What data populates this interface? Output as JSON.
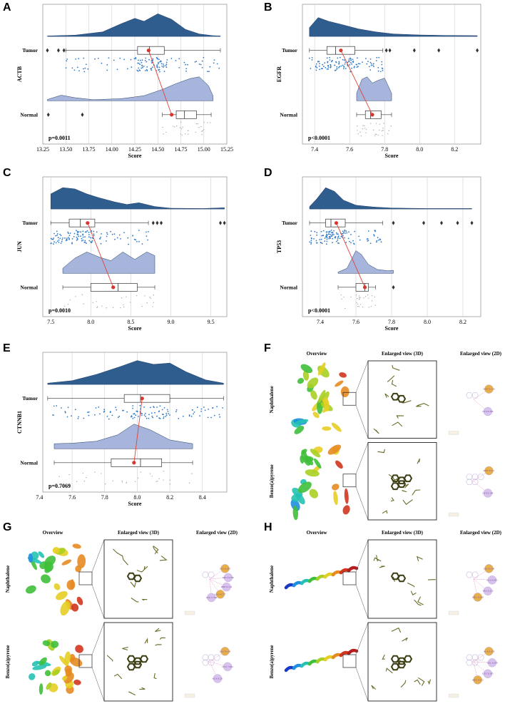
{
  "panel_labels": [
    "A",
    "B",
    "C",
    "D",
    "E",
    "F",
    "G",
    "H"
  ],
  "colors": {
    "tumor_fill": "#2e5d8e",
    "normal_fill": "#a7b4dc",
    "tumor_point": "#2f79c6",
    "normal_point": "#9aa3b0",
    "median_line": "#e0423a",
    "grid": "#cfcfcf"
  },
  "chart_data": [
    {
      "panel": "A",
      "type": "raincloud-boxplot",
      "gene": "ACTB",
      "xlabel": "Score",
      "categories": [
        "Tumor",
        "Normal"
      ],
      "xlim": [
        13.25,
        15.25
      ],
      "xticks": [
        13.25,
        13.5,
        13.75,
        14.0,
        14.25,
        14.5,
        14.75,
        15.0,
        15.25
      ],
      "xtick_labels": [
        "13.25",
        "13.50",
        "13.75",
        "14.00",
        "14.25",
        "14.50",
        "14.75",
        "15.00",
        "15.25"
      ],
      "p_value": "p=0.0011",
      "tumor": {
        "min": 13.5,
        "q1": 14.28,
        "median": 14.41,
        "q3": 14.57,
        "max": 15.18,
        "mean": 14.4,
        "outliers": [
          13.3,
          13.42,
          13.48
        ]
      },
      "normal": {
        "min": 14.55,
        "q1": 14.7,
        "median": 14.79,
        "q3": 14.92,
        "max": 15.08,
        "mean": 14.65,
        "outliers": [
          13.31,
          13.68
        ]
      },
      "tumor_density": [
        [
          13.3,
          0.02
        ],
        [
          13.6,
          0.05
        ],
        [
          13.9,
          0.18
        ],
        [
          14.1,
          0.5
        ],
        [
          14.25,
          0.72
        ],
        [
          14.35,
          0.6
        ],
        [
          14.5,
          0.9
        ],
        [
          14.65,
          0.68
        ],
        [
          14.8,
          0.28
        ],
        [
          14.95,
          0.1
        ],
        [
          15.1,
          0.03
        ],
        [
          15.18,
          0.02
        ]
      ],
      "normal_density": [
        [
          13.3,
          0.05
        ],
        [
          13.45,
          0.22
        ],
        [
          13.6,
          0.12
        ],
        [
          13.8,
          0.04
        ],
        [
          14.1,
          0.08
        ],
        [
          14.35,
          0.2
        ],
        [
          14.55,
          0.45
        ],
        [
          14.7,
          0.68
        ],
        [
          14.85,
          0.88
        ],
        [
          14.95,
          0.95
        ],
        [
          15.05,
          0.6
        ],
        [
          15.1,
          0.2
        ]
      ]
    },
    {
      "panel": "B",
      "type": "raincloud-boxplot",
      "gene": "EGFR",
      "xlabel": "Score",
      "categories": [
        "Tumor",
        "Normal"
      ],
      "xlim": [
        7.33,
        8.35
      ],
      "xticks": [
        7.4,
        7.6,
        7.8,
        8.0,
        8.2
      ],
      "xtick_labels": [
        "7.4",
        "7.6",
        "7.8",
        "8.0",
        "8.2"
      ],
      "p_value": "p<0.0001",
      "tumor": {
        "min": 7.37,
        "q1": 7.47,
        "median": 7.52,
        "q3": 7.63,
        "max": 7.79,
        "mean": 7.55,
        "outliers": [
          7.81,
          7.83,
          7.97,
          8.11,
          8.33
        ]
      },
      "normal": {
        "min": 7.64,
        "q1": 7.69,
        "median": 7.72,
        "q3": 7.78,
        "max": 7.84,
        "mean": 7.73,
        "outliers": []
      },
      "tumor_density": [
        [
          7.37,
          0.35
        ],
        [
          7.42,
          0.75
        ],
        [
          7.48,
          0.6
        ],
        [
          7.55,
          0.48
        ],
        [
          7.65,
          0.3
        ],
        [
          7.75,
          0.18
        ],
        [
          7.85,
          0.1
        ],
        [
          8.0,
          0.06
        ],
        [
          8.15,
          0.04
        ],
        [
          8.33,
          0.03
        ]
      ],
      "normal_density": [
        [
          7.64,
          0.3
        ],
        [
          7.67,
          0.85
        ],
        [
          7.7,
          0.95
        ],
        [
          7.73,
          0.7
        ],
        [
          7.76,
          0.8
        ],
        [
          7.8,
          0.9
        ],
        [
          7.84,
          0.3
        ]
      ]
    },
    {
      "panel": "C",
      "type": "raincloud-boxplot",
      "gene": "JUN",
      "xlabel": "Score",
      "categories": [
        "Tumor",
        "Normal"
      ],
      "xlim": [
        7.4,
        9.7
      ],
      "xticks": [
        7.5,
        8.0,
        8.5,
        9.0,
        9.5
      ],
      "xtick_labels": [
        "7.5",
        "8.0",
        "8.5",
        "9.0",
        "9.5"
      ],
      "p_value": "p=0.0010",
      "tumor": {
        "min": 7.5,
        "q1": 7.73,
        "median": 7.87,
        "q3": 8.05,
        "max": 8.72,
        "mean": 7.96,
        "outliers": [
          8.78,
          8.83,
          8.88,
          9.62,
          9.67
        ]
      },
      "normal": {
        "min": 7.65,
        "q1": 8.0,
        "median": 8.34,
        "q3": 8.58,
        "max": 8.8,
        "mean": 8.28,
        "outliers": []
      },
      "tumor_density": [
        [
          7.5,
          0.6
        ],
        [
          7.65,
          0.85
        ],
        [
          7.8,
          0.8
        ],
        [
          7.95,
          0.6
        ],
        [
          8.1,
          0.45
        ],
        [
          8.3,
          0.28
        ],
        [
          8.45,
          0.18
        ],
        [
          8.6,
          0.25
        ],
        [
          8.8,
          0.1
        ],
        [
          9.0,
          0.03
        ],
        [
          9.4,
          0.02
        ],
        [
          9.67,
          0.05
        ]
      ],
      "normal_density": [
        [
          7.65,
          0.2
        ],
        [
          7.8,
          0.6
        ],
        [
          7.95,
          0.85
        ],
        [
          8.1,
          0.65
        ],
        [
          8.25,
          0.5
        ],
        [
          8.4,
          0.85
        ],
        [
          8.55,
          0.55
        ],
        [
          8.7,
          0.85
        ],
        [
          8.8,
          0.7
        ]
      ]
    },
    {
      "panel": "D",
      "type": "raincloud-boxplot",
      "gene": "TP53",
      "xlabel": "Score",
      "categories": [
        "Tumor",
        "Normal"
      ],
      "xlim": [
        7.3,
        8.3
      ],
      "xticks": [
        7.4,
        7.6,
        7.8,
        8.0,
        8.2
      ],
      "xtick_labels": [
        "7.4",
        "7.6",
        "7.8",
        "8.0",
        "8.2"
      ],
      "p_value": "p<0.0001",
      "tumor": {
        "min": 7.34,
        "q1": 7.43,
        "median": 7.46,
        "q3": 7.54,
        "max": 7.75,
        "mean": 7.49,
        "outliers": [
          7.81,
          7.98,
          8.08,
          8.17,
          8.25
        ]
      },
      "normal": {
        "min": 7.5,
        "q1": 7.6,
        "median": 7.65,
        "q3": 7.67,
        "max": 7.71,
        "mean": 7.65,
        "outliers": [
          7.81
        ]
      },
      "tumor_density": [
        [
          7.34,
          0.1
        ],
        [
          7.38,
          0.4
        ],
        [
          7.43,
          0.85
        ],
        [
          7.48,
          0.7
        ],
        [
          7.53,
          0.35
        ],
        [
          7.6,
          0.15
        ],
        [
          7.7,
          0.08
        ],
        [
          7.8,
          0.04
        ],
        [
          8.0,
          0.02
        ],
        [
          8.25,
          0.02
        ]
      ],
      "normal_density": [
        [
          7.5,
          0.05
        ],
        [
          7.55,
          0.2
        ],
        [
          7.6,
          0.9
        ],
        [
          7.63,
          0.75
        ],
        [
          7.67,
          0.35
        ],
        [
          7.72,
          0.15
        ],
        [
          7.78,
          0.1
        ],
        [
          7.81,
          0.12
        ]
      ]
    },
    {
      "panel": "E",
      "type": "raincloud-boxplot",
      "gene": "CTNNB1",
      "xlabel": "Score",
      "categories": [
        "Tumor",
        "Normal"
      ],
      "xlim": [
        7.42,
        8.55
      ],
      "xticks": [
        7.4,
        7.6,
        7.8,
        8.0,
        8.2,
        8.4
      ],
      "xtick_labels": [
        "7.4",
        "7.6",
        "7.8",
        "8.0",
        "8.2",
        "8.4"
      ],
      "p_value": "p=0.7069",
      "tumor": {
        "min": 7.45,
        "q1": 7.92,
        "median": 8.02,
        "q3": 8.2,
        "max": 8.53,
        "mean": 8.03,
        "outliers": []
      },
      "normal": {
        "min": 7.49,
        "q1": 7.84,
        "median": 8.02,
        "q3": 8.15,
        "max": 8.34,
        "mean": 7.98,
        "outliers": []
      },
      "tumor_density": [
        [
          7.45,
          0.05
        ],
        [
          7.6,
          0.15
        ],
        [
          7.75,
          0.4
        ],
        [
          7.9,
          0.72
        ],
        [
          8.0,
          0.95
        ],
        [
          8.1,
          0.8
        ],
        [
          8.2,
          0.85
        ],
        [
          8.3,
          0.5
        ],
        [
          8.42,
          0.18
        ],
        [
          8.53,
          0.05
        ]
      ],
      "normal_density": [
        [
          7.49,
          0.2
        ],
        [
          7.6,
          0.22
        ],
        [
          7.75,
          0.3
        ],
        [
          7.88,
          0.55
        ],
        [
          7.98,
          0.98
        ],
        [
          8.08,
          0.75
        ],
        [
          8.2,
          0.35
        ],
        [
          8.34,
          0.2
        ]
      ]
    }
  ],
  "docking": [
    {
      "panel": "F",
      "headers": {
        "overview": "Overview",
        "view3d": "Enlarged view (3D)",
        "view2d": "Enlarged view (2D)"
      },
      "molecules": [
        "Naphthalene",
        "Benzo(a)pyrene"
      ],
      "residues_top": [
        "MET 8.149",
        "LYS 8.268"
      ],
      "residues_bottom": [
        "MET 8.211",
        "LYS 8.148"
      ]
    },
    {
      "panel": "G",
      "headers": {
        "overview": "Overview",
        "view3d": "Enlarged view (3D)",
        "view2d": "Enlarged view (2D)"
      },
      "molecules": [
        "Naphthalene",
        "Benzo(a)pyrene"
      ],
      "residues_top": [
        "LYS 6.345",
        "MET 8.760",
        "PHE 6.119",
        "LEU 8.777",
        "LEU 5.768"
      ],
      "residues_bottom": [
        "LEU 8.108",
        "LEU 7.902",
        "ALA 8.211"
      ]
    },
    {
      "panel": "H",
      "headers": {
        "overview": "Overview",
        "view3d": "Enlarged view (3D)",
        "view2d": "Enlarged view (2D)"
      },
      "molecules": [
        "Naphthalene",
        "Benzo(a)pyrene"
      ],
      "residues_top": [
        "LEU 8.148",
        "ALA 8.391",
        "VAL 8.213",
        "ARG 8.168"
      ],
      "residues_bottom": [
        "ALA 8.358",
        "VAL 8.209",
        "LEU 8.185",
        "ARG 8.252"
      ]
    }
  ]
}
